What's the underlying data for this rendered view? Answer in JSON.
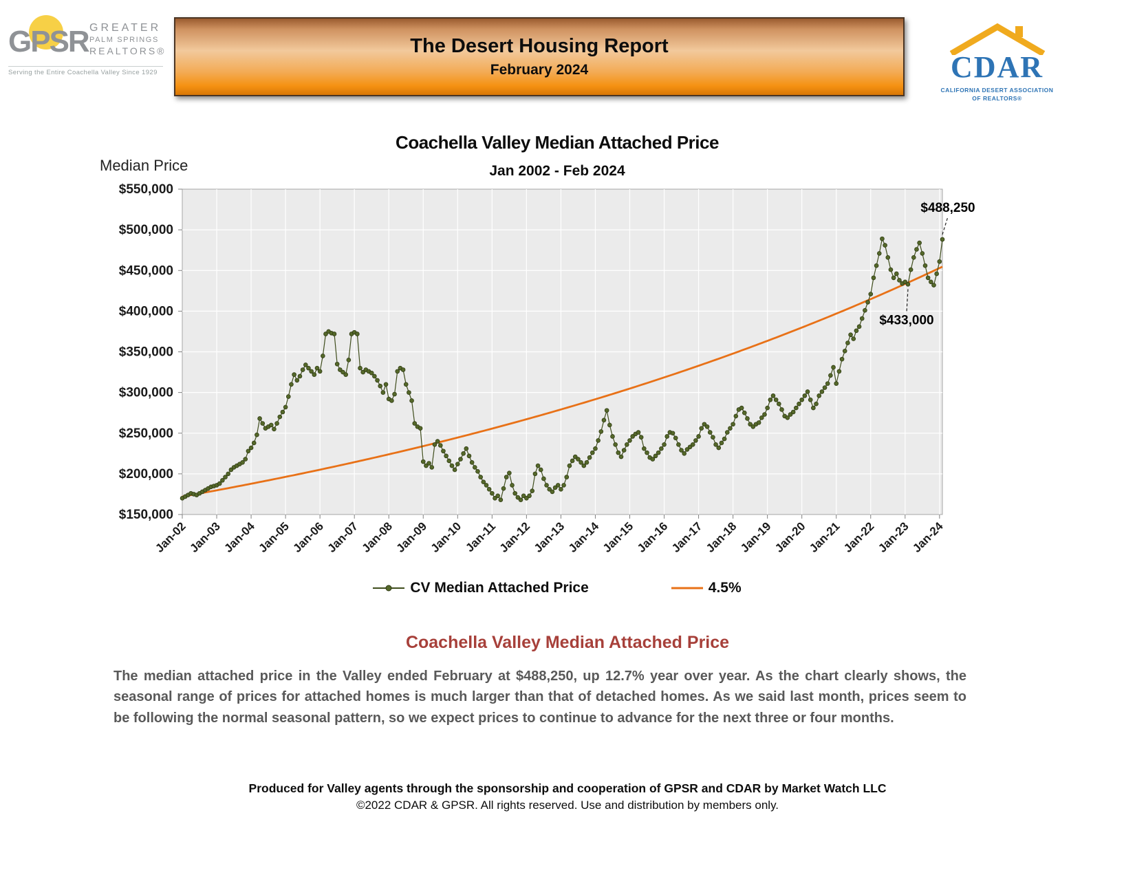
{
  "header": {
    "gpsr_logo": {
      "acronym": "GPSR",
      "name_line1": "GREATER",
      "name_line2": "PALM SPRINGS",
      "name_line3": "REALTORS®",
      "tagline": "Serving the Entire Coachella Valley Since 1929"
    },
    "banner": {
      "title": "The Desert Housing Report",
      "subtitle": "February 2024"
    },
    "cdar_logo": {
      "acronym": "CDAR",
      "tagline_line1": "CALIFORNIA DESERT ASSOCIATION",
      "tagline_line2": "OF REALTORS®"
    }
  },
  "chart": {
    "title": "Coachella Valley Median Attached Price",
    "subtitle": "Jan 2002 - Feb 2024",
    "y_axis_label": "Median Price",
    "legend": [
      {
        "label": "CV Median Attached Price"
      },
      {
        "label": "4.5%"
      }
    ]
  },
  "chart_data": {
    "type": "line",
    "title": "Coachella Valley Median Attached Price",
    "subtitle": "Jan 2002 - Feb 2024",
    "ylabel": "Median Price",
    "ylim": [
      150000,
      550000
    ],
    "y_tick_step": 50000,
    "start_year": 2002,
    "x_tick_labels": [
      "Jan-02",
      "Jan-03",
      "Jan-04",
      "Jan-05",
      "Jan-06",
      "Jan-07",
      "Jan-08",
      "Jan-09",
      "Jan-10",
      "Jan-11",
      "Jan-12",
      "Jan-13",
      "Jan-14",
      "Jan-15",
      "Jan-16",
      "Jan-17",
      "Jan-18",
      "Jan-19",
      "Jan-20",
      "Jan-21",
      "Jan-22",
      "Jan-23",
      "Jan-24"
    ],
    "grid": true,
    "plot_background": "#ebebeb",
    "series": [
      {
        "name": "CV Median Attached Price",
        "color": "#4f6228",
        "marker_color": "#55682a",
        "values_thousands": [
          170,
          172,
          174,
          176,
          175,
          174,
          176,
          178,
          180,
          182,
          184,
          185,
          186,
          188,
          192,
          196,
          200,
          205,
          208,
          210,
          212,
          214,
          218,
          228,
          232,
          238,
          248,
          268,
          262,
          256,
          258,
          260,
          255,
          262,
          270,
          276,
          282,
          295,
          310,
          322,
          315,
          320,
          328,
          334,
          330,
          326,
          322,
          330,
          326,
          345,
          372,
          375,
          373,
          372,
          335,
          328,
          325,
          322,
          340,
          372,
          374,
          372,
          330,
          325,
          328,
          326,
          324,
          320,
          315,
          308,
          300,
          310,
          292,
          290,
          298,
          326,
          330,
          328,
          310,
          300,
          290,
          262,
          258,
          256,
          215,
          210,
          213,
          208,
          236,
          240,
          235,
          228,
          222,
          216,
          210,
          205,
          212,
          218,
          225,
          231,
          222,
          214,
          208,
          203,
          196,
          190,
          186,
          181,
          176,
          170,
          173,
          168,
          182,
          196,
          201,
          186,
          176,
          171,
          168,
          173,
          170,
          173,
          179,
          200,
          210,
          205,
          194,
          186,
          181,
          178,
          183,
          186,
          181,
          186,
          196,
          210,
          216,
          221,
          218,
          214,
          210,
          214,
          220,
          226,
          231,
          241,
          252,
          266,
          278,
          260,
          246,
          236,
          226,
          221,
          229,
          236,
          241,
          246,
          249,
          251,
          245,
          231,
          226,
          220,
          218,
          222,
          226,
          231,
          236,
          246,
          251,
          250,
          244,
          236,
          229,
          225,
          230,
          233,
          236,
          241,
          246,
          256,
          261,
          258,
          251,
          245,
          236,
          232,
          238,
          243,
          251,
          256,
          261,
          271,
          279,
          281,
          275,
          268,
          261,
          258,
          261,
          263,
          269,
          273,
          281,
          291,
          296,
          291,
          286,
          279,
          271,
          269,
          273,
          276,
          281,
          286,
          291,
          296,
          301,
          291,
          281,
          286,
          296,
          301,
          306,
          311,
          321,
          331,
          311,
          326,
          341,
          351,
          361,
          371,
          366,
          376,
          381,
          391,
          401,
          411,
          421,
          441,
          456,
          471,
          489,
          481,
          466,
          451,
          441,
          446,
          438,
          434,
          436,
          433,
          451,
          466,
          476,
          484,
          471,
          456,
          441,
          436,
          432,
          446,
          461,
          488.25
        ]
      },
      {
        "name": "4.5%",
        "color": "#e87117",
        "reference_line": {
          "start_value": 172000,
          "annual_growth_pct": 4.5
        }
      }
    ],
    "annotations": [
      {
        "label": "$488,250",
        "month": "2024-02",
        "value": 488250,
        "label_offset": [
          8,
          -40
        ]
      },
      {
        "label": "$433,000",
        "month": "2023-02",
        "value": 433000,
        "label_offset": [
          -2,
          58
        ]
      }
    ],
    "legend_position": "bottom"
  },
  "body": {
    "heading": "Coachella Valley Median Attached Price",
    "paragraph": "The median attached price in the Valley ended February at $488,250, up 12.7% year over year. As the chart clearly shows, the seasonal range of prices for attached homes is much larger than that of detached homes. As we said last month, prices seem to be following the normal seasonal pattern, so we expect prices to continue to advance for the next three or four months."
  },
  "footer": {
    "line1": "Produced for Valley agents through the sponsorship and cooperation of GPSR and CDAR by Market Watch LLC",
    "line2": "©2022 CDAR & GPSR.  All rights reserved.  Use and distribution by members only."
  }
}
